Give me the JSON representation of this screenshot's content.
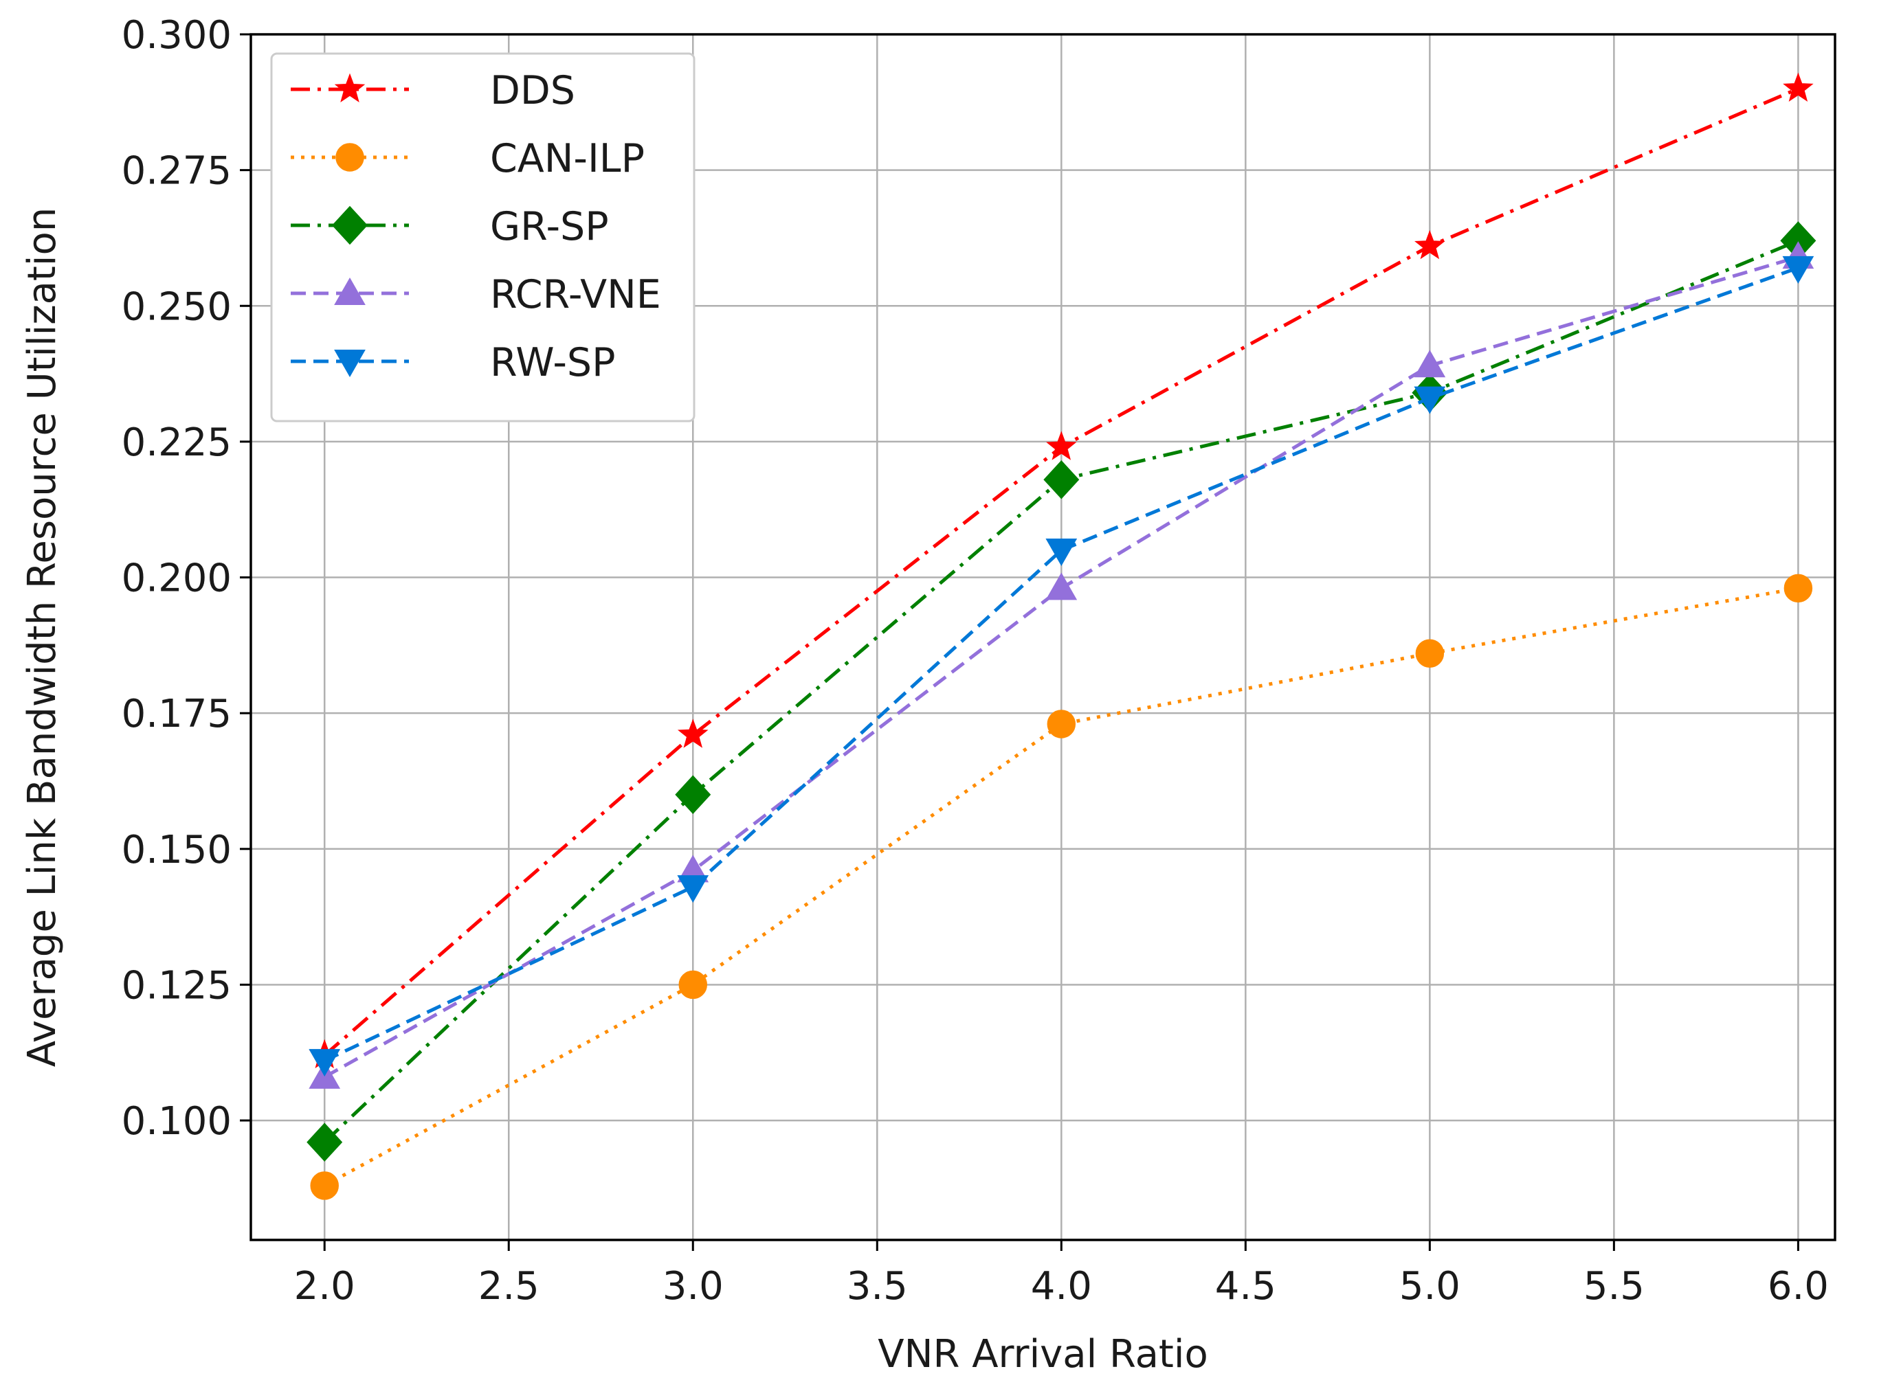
{
  "chart_data": {
    "type": "line",
    "title": "",
    "xlabel": "VNR Arrival Ratio",
    "ylabel": "Average Link Bandwidth Resource Utilization",
    "xlim": [
      1.8,
      6.1
    ],
    "ylim": [
      0.078,
      0.3
    ],
    "xticks": [
      2.0,
      2.5,
      3.0,
      3.5,
      4.0,
      4.5,
      5.0,
      5.5,
      6.0
    ],
    "xtick_labels": [
      "2.0",
      "2.5",
      "3.0",
      "3.5",
      "4.0",
      "4.5",
      "5.0",
      "5.5",
      "6.0"
    ],
    "yticks": [
      0.1,
      0.125,
      0.15,
      0.175,
      0.2,
      0.225,
      0.25,
      0.275,
      0.3
    ],
    "ytick_labels": [
      "0.100",
      "0.125",
      "0.150",
      "0.175",
      "0.200",
      "0.225",
      "0.250",
      "0.275",
      "0.300"
    ],
    "grid": true,
    "legend_position": "top-left",
    "x": [
      2.0,
      3.0,
      4.0,
      5.0,
      6.0
    ],
    "series": [
      {
        "name": "DDS",
        "values": [
          0.112,
          0.171,
          0.224,
          0.261,
          0.29
        ],
        "color": "#ff0000",
        "dash": "dashdot",
        "marker": "star"
      },
      {
        "name": "CAN-ILP",
        "values": [
          0.088,
          0.125,
          0.173,
          0.186,
          0.198
        ],
        "color": "#ff8c00",
        "dash": "dotted",
        "marker": "circle"
      },
      {
        "name": "GR-SP",
        "values": [
          0.096,
          0.16,
          0.218,
          0.234,
          0.262
        ],
        "color": "#008000",
        "dash": "dashdot",
        "marker": "diamond"
      },
      {
        "name": "RCR-VNE",
        "values": [
          0.108,
          0.146,
          0.198,
          0.239,
          0.259
        ],
        "color": "#9370db",
        "dash": "dashed",
        "marker": "triangle-up"
      },
      {
        "name": "RW-SP",
        "values": [
          0.111,
          0.143,
          0.205,
          0.233,
          0.257
        ],
        "color": "#0078d7",
        "dash": "dashed",
        "marker": "triangle-down"
      }
    ]
  }
}
